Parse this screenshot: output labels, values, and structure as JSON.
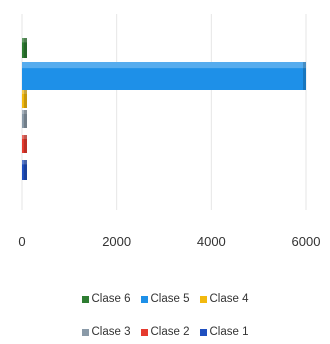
{
  "chart_data": {
    "type": "bar",
    "orientation": "horizontal",
    "title": "",
    "xlabel": "",
    "ylabel": "",
    "xlim": [
      0,
      6000
    ],
    "xticks": [
      "0",
      "2000",
      "4000",
      "6000"
    ],
    "grid": true,
    "legend_position": "bottom",
    "series": [
      {
        "name": "Clase 6",
        "value": 20,
        "color": "#2e7d32"
      },
      {
        "name": "Clase 5",
        "value": 6000,
        "color": "#1e90e8"
      },
      {
        "name": "Clase 4",
        "value": 15,
        "color": "#f2b90f"
      },
      {
        "name": "Clase 3",
        "value": 18,
        "color": "#8a9aa8"
      },
      {
        "name": "Clase 2",
        "value": 12,
        "color": "#e53a2e"
      },
      {
        "name": "Clase 1",
        "value": 20,
        "color": "#1f4fbf"
      }
    ],
    "legend_rows": [
      [
        "Clase 6",
        "Clase 5",
        "Clase 4"
      ],
      [
        "Clase 3",
        "Clase 2",
        "Clase 1"
      ]
    ]
  }
}
